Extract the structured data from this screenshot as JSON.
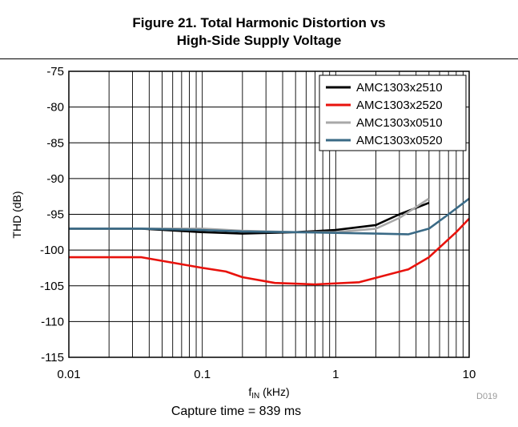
{
  "figure": {
    "title_line1": "Figure 21. Total Harmonic Distortion vs",
    "title_line2": "High-Side Supply Voltage",
    "caption": "Capture time = 839 ms",
    "code": "D019"
  },
  "chart_data": {
    "type": "line",
    "xlabel_main": "f",
    "xlabel_sub": "IN",
    "xlabel_unit": " (kHz)",
    "ylabel": "THD (dB)",
    "xscale": "log",
    "xlim": [
      0.01,
      10
    ],
    "ylim": [
      -115,
      -75
    ],
    "x_ticks": [
      0.01,
      0.1,
      1,
      10
    ],
    "x_tick_labels": [
      "0.01",
      "0.1",
      "1",
      "10"
    ],
    "y_ticks": [
      -75,
      -80,
      -85,
      -90,
      -95,
      -100,
      -105,
      -110,
      -115
    ],
    "y_tick_labels": [
      "-75",
      "-80",
      "-85",
      "-90",
      "-95",
      "-100",
      "-105",
      "-110",
      "-115"
    ],
    "grid": true,
    "legend_position": "top-right",
    "series": [
      {
        "name": "AMC1303x2510",
        "color": "#000000",
        "points": [
          [
            0.01,
            -97.0
          ],
          [
            0.035,
            -97.0
          ],
          [
            0.1,
            -97.5
          ],
          [
            0.2,
            -97.7
          ],
          [
            0.5,
            -97.5
          ],
          [
            1,
            -97.2
          ],
          [
            2,
            -96.5
          ],
          [
            3,
            -95.0
          ],
          [
            5,
            -93.4
          ]
        ]
      },
      {
        "name": "AMC1303x2520",
        "color": "#e8120c",
        "points": [
          [
            0.01,
            -101.0
          ],
          [
            0.035,
            -101.0
          ],
          [
            0.1,
            -102.5
          ],
          [
            0.15,
            -103.0
          ],
          [
            0.2,
            -103.8
          ],
          [
            0.35,
            -104.6
          ],
          [
            0.7,
            -104.8
          ],
          [
            1.5,
            -104.5
          ],
          [
            3.5,
            -102.7
          ],
          [
            5,
            -101.0
          ],
          [
            8,
            -97.5
          ],
          [
            10,
            -95.6
          ]
        ]
      },
      {
        "name": "AMC1303x0510",
        "color": "#a8a8a8",
        "points": [
          [
            0.01,
            -97.0
          ],
          [
            0.035,
            -97.0
          ],
          [
            0.1,
            -97.0
          ],
          [
            0.2,
            -97.3
          ],
          [
            0.5,
            -97.5
          ],
          [
            1,
            -97.5
          ],
          [
            2,
            -97.0
          ],
          [
            3,
            -95.5
          ],
          [
            5,
            -92.8
          ]
        ]
      },
      {
        "name": "AMC1303x0520",
        "color": "#3a6a86",
        "points": [
          [
            0.01,
            -97.0
          ],
          [
            0.035,
            -97.0
          ],
          [
            0.1,
            -97.2
          ],
          [
            0.2,
            -97.4
          ],
          [
            0.5,
            -97.5
          ],
          [
            1,
            -97.6
          ],
          [
            2,
            -97.7
          ],
          [
            3.5,
            -97.8
          ],
          [
            5,
            -97.0
          ],
          [
            7,
            -95.0
          ],
          [
            10,
            -92.8
          ]
        ]
      }
    ]
  }
}
